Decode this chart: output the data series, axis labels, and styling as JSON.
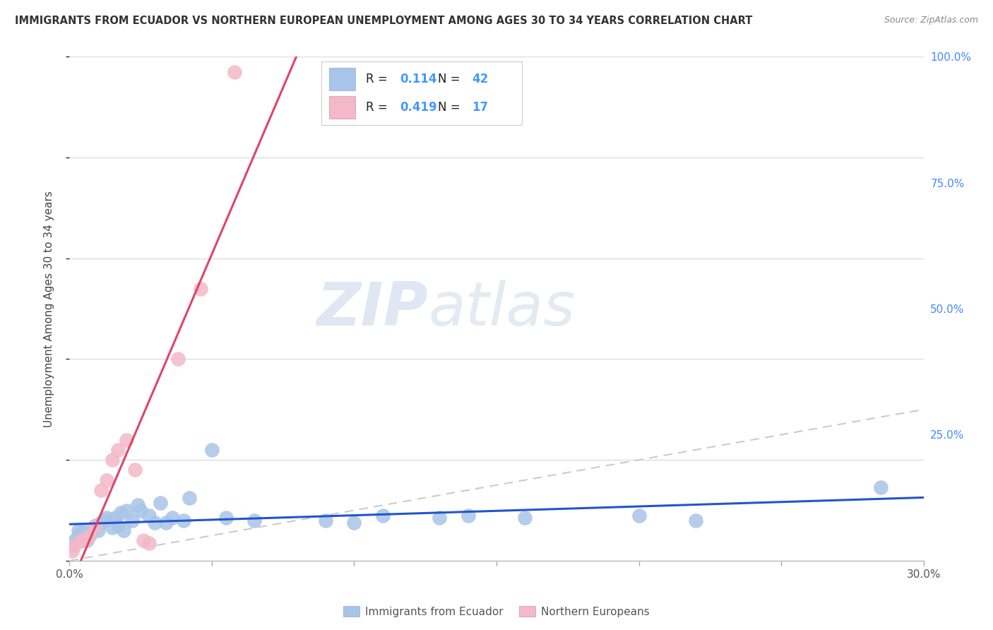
{
  "title": "IMMIGRANTS FROM ECUADOR VS NORTHERN EUROPEAN UNEMPLOYMENT AMONG AGES 30 TO 34 YEARS CORRELATION CHART",
  "source": "Source: ZipAtlas.com",
  "ylabel": "Unemployment Among Ages 30 to 34 years",
  "xlim": [
    0.0,
    0.3
  ],
  "ylim": [
    0.0,
    1.0
  ],
  "ecuador_R": "0.114",
  "ecuador_N": "42",
  "northern_R": "0.419",
  "northern_N": "17",
  "ecuador_color": "#a8c4e8",
  "northern_color": "#f4b8c8",
  "ecuador_line_color": "#2255cc",
  "northern_line_color": "#e04466",
  "diagonal_color": "#cccccc",
  "label_color": "#4499ff",
  "watermark_zip": "ZIP",
  "watermark_atlas": "atlas",
  "ecuador_x": [
    0.001,
    0.002,
    0.003,
    0.003,
    0.004,
    0.005,
    0.006,
    0.007,
    0.008,
    0.009,
    0.01,
    0.011,
    0.012,
    0.013,
    0.015,
    0.016,
    0.017,
    0.018,
    0.019,
    0.02,
    0.022,
    0.024,
    0.025,
    0.028,
    0.03,
    0.032,
    0.034,
    0.036,
    0.04,
    0.042,
    0.05,
    0.055,
    0.065,
    0.09,
    0.1,
    0.11,
    0.13,
    0.14,
    0.16,
    0.2,
    0.22,
    0.285
  ],
  "ecuador_y": [
    0.03,
    0.04,
    0.05,
    0.06,
    0.04,
    0.06,
    0.04,
    0.05,
    0.06,
    0.07,
    0.06,
    0.075,
    0.08,
    0.085,
    0.065,
    0.085,
    0.07,
    0.095,
    0.06,
    0.1,
    0.08,
    0.11,
    0.1,
    0.09,
    0.075,
    0.115,
    0.075,
    0.085,
    0.08,
    0.125,
    0.22,
    0.085,
    0.08,
    0.08,
    0.075,
    0.09,
    0.085,
    0.09,
    0.085,
    0.09,
    0.08,
    0.145
  ],
  "northern_x": [
    0.001,
    0.002,
    0.004,
    0.005,
    0.007,
    0.009,
    0.011,
    0.013,
    0.015,
    0.017,
    0.02,
    0.023,
    0.026,
    0.028,
    0.038,
    0.046,
    0.058
  ],
  "northern_y": [
    0.02,
    0.03,
    0.04,
    0.04,
    0.05,
    0.07,
    0.14,
    0.16,
    0.2,
    0.22,
    0.24,
    0.18,
    0.04,
    0.035,
    0.4,
    0.54,
    0.97
  ]
}
